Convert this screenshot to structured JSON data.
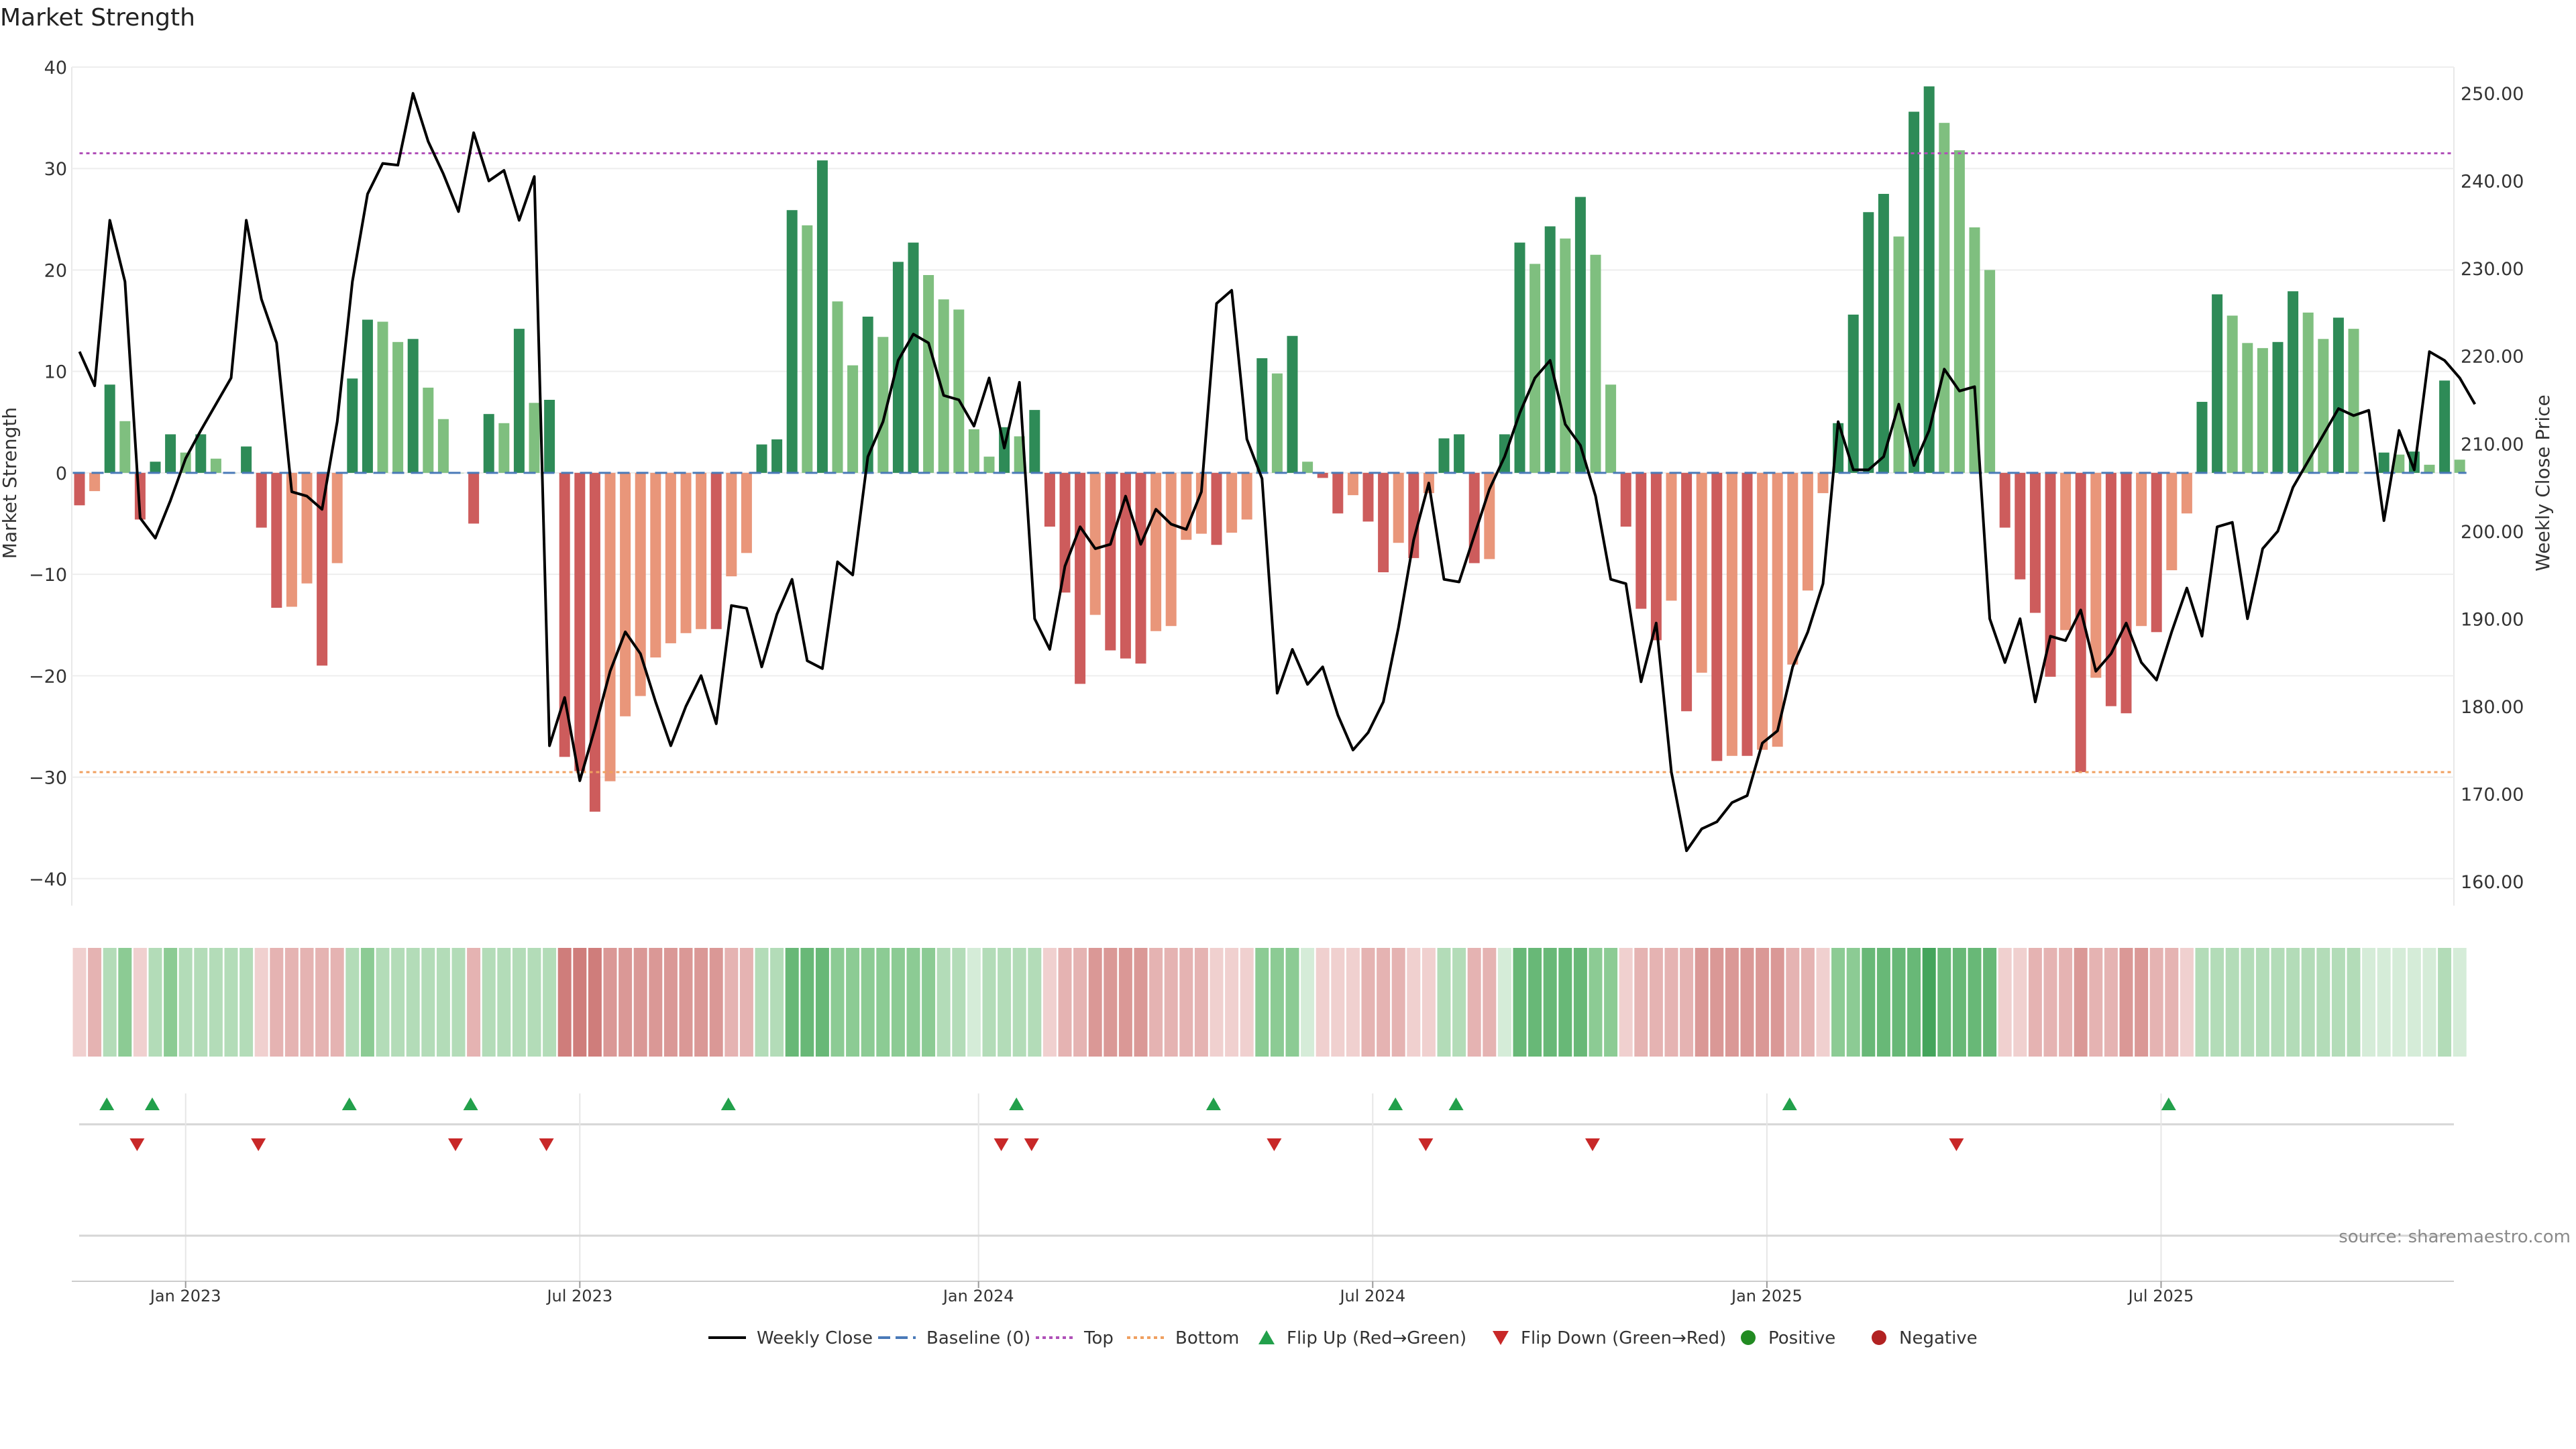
{
  "chart_data": {
    "type": "bar",
    "title": "Market Strength",
    "ylabel": "Market Strength",
    "y2label": "Weekly Close Price",
    "ylim": [
      -42,
      40
    ],
    "y2lim": [
      158,
      253
    ],
    "yticks": [
      40,
      30,
      20,
      10,
      0,
      -10,
      -20,
      -30,
      -40
    ],
    "y2ticks": [
      250,
      240,
      230,
      220,
      210,
      200,
      190,
      180,
      170,
      160
    ],
    "y2tick_labels": [
      "250.00",
      "240.00",
      "230.00",
      "220.00",
      "210.00",
      "200.00",
      "190.00",
      "180.00",
      "170.00",
      "160.00"
    ],
    "top_line": 31.5,
    "bottom_line": -29.5,
    "baseline": 0,
    "x_tick_labels": [
      "Jan 2023",
      "Jul 2023",
      "Jan 2024",
      "Jul 2024",
      "Jan 2025",
      "Jul 2025"
    ],
    "x_tick_weeks": [
      7,
      33,
      59.3,
      85.3,
      111.3,
      137.3
    ],
    "strength": [
      -3.2,
      -1.8,
      8.7,
      5.1,
      -4.6,
      1.1,
      3.8,
      2.0,
      3.8,
      1.4,
      0,
      2.6,
      -5.4,
      -13.3,
      -13.2,
      -10.9,
      -19.0,
      -8.9,
      9.3,
      15.1,
      14.9,
      12.9,
      13.2,
      8.4,
      5.3,
      0,
      -5.0,
      5.8,
      4.9,
      14.2,
      6.9,
      7.2,
      -28.0,
      -29.4,
      -33.4,
      -30.4,
      -24.0,
      -22.0,
      -18.2,
      -16.8,
      -15.8,
      -15.4,
      -15.4,
      -10.2,
      -7.9,
      2.8,
      3.3,
      25.9,
      24.4,
      30.8,
      16.9,
      10.6,
      15.4,
      13.4,
      20.8,
      22.7,
      19.5,
      17.1,
      16.1,
      4.3,
      1.6,
      4.5,
      3.6,
      6.2,
      -5.3,
      -11.8,
      -20.8,
      -14.0,
      -17.5,
      -18.3,
      -18.8,
      -15.6,
      -15.1,
      -6.6,
      -6.0,
      -7.1,
      -5.9,
      -4.6,
      11.3,
      9.8,
      13.5,
      1.1,
      -0.5,
      -4.0,
      -2.2,
      -4.8,
      -9.8,
      -6.9,
      -8.4,
      -2.0,
      3.4,
      3.8,
      -8.9,
      -8.5,
      3.8,
      22.7,
      20.6,
      24.3,
      23.1,
      27.2,
      21.5,
      8.7,
      -5.3,
      -13.4,
      -16.5,
      -12.6,
      -23.5,
      -19.7,
      -28.4,
      -27.9,
      -27.9,
      -27.3,
      -27.0,
      -18.9,
      -11.6,
      -2.0,
      4.9,
      15.6,
      25.7,
      27.5,
      23.3,
      35.6,
      38.1,
      34.5,
      31.8,
      24.2,
      20.0,
      -5.4,
      -10.5,
      -13.8,
      -20.1,
      -15.5,
      -29.5,
      -20.2,
      -23.0,
      -23.7,
      -15.1,
      -15.7,
      -9.6,
      -4.0,
      7.0,
      17.6,
      15.5,
      12.8,
      12.3,
      12.9,
      17.9,
      15.8,
      13.2,
      15.3,
      14.2,
      0,
      2.0,
      1.8,
      2.1,
      0.8,
      9.1,
      1.3
    ],
    "close": [
      220.5,
      216.6,
      235.5,
      228.5,
      201.5,
      199.2,
      203.5,
      208.3,
      211.5,
      214.5,
      217.5,
      235.5,
      226.5,
      221.5,
      204.5,
      204,
      202.5,
      212.5,
      228.5,
      238.5,
      242,
      241.8,
      250,
      244.5,
      240.8,
      236.5,
      245.5,
      240,
      241.2,
      235.5,
      240.5,
      175.5,
      181,
      171.5,
      177.5,
      184,
      188.5,
      186,
      180.5,
      175.5,
      180,
      183.5,
      178,
      191.5,
      191.2,
      184.5,
      190.5,
      194.5,
      185.2,
      184.3,
      196.5,
      195,
      208.5,
      212.5,
      219.5,
      222.5,
      221.5,
      215.5,
      215,
      212,
      217.5,
      209.5,
      217,
      190,
      186.5,
      196,
      200.5,
      198,
      198.5,
      204,
      198.5,
      202.5,
      200.8,
      200.2,
      204.5,
      226,
      227.5,
      210.5,
      206,
      181.5,
      186.5,
      182.5,
      184.5,
      179,
      175,
      177,
      180.5,
      189,
      199,
      205.5,
      194.5,
      194.2,
      199.5,
      204.8,
      208.5,
      213.5,
      217.5,
      219.5,
      212.2,
      209.8,
      204,
      194.5,
      194,
      182.8,
      189.5,
      172.5,
      163.5,
      166,
      166.8,
      169,
      169.8,
      175.8,
      177.2,
      184.5,
      188.5,
      194,
      212.5,
      207,
      207,
      208.5,
      214.5,
      207.5,
      211.5,
      218.5,
      216,
      216.5,
      190,
      185,
      190,
      180.5,
      188,
      187.5,
      191,
      184,
      186,
      189.5,
      185,
      183,
      188.5,
      193.5,
      188,
      200.5,
      201,
      190,
      198,
      200,
      205,
      208,
      211,
      214,
      213.2,
      213.8,
      201.2,
      211.5,
      207,
      220.5,
      219.5,
      217.5,
      214.5
    ],
    "heat_levels": [
      0,
      1,
      1,
      2,
      0,
      1,
      2,
      1,
      1,
      1,
      1,
      1,
      0,
      1,
      1,
      1,
      1,
      1,
      1,
      2,
      1,
      1,
      1,
      1,
      1,
      1,
      1,
      1,
      1,
      1,
      1,
      1,
      3,
      3,
      3,
      2,
      2,
      2,
      2,
      2,
      2,
      2,
      2,
      1,
      1,
      1,
      1,
      3,
      3,
      3,
      2,
      2,
      2,
      2,
      2,
      2,
      2,
      1,
      1,
      0,
      1,
      1,
      1,
      1,
      0,
      1,
      1,
      2,
      2,
      2,
      2,
      1,
      1,
      1,
      1,
      0,
      0,
      0,
      2,
      2,
      2,
      0,
      0,
      0,
      0,
      1,
      1,
      1,
      0,
      0,
      1,
      1,
      1,
      1,
      0,
      3,
      3,
      3,
      3,
      3,
      2,
      2,
      0,
      1,
      1,
      1,
      1,
      2,
      2,
      2,
      2,
      2,
      2,
      1,
      1,
      0,
      2,
      2,
      3,
      3,
      3,
      3,
      4,
      3,
      3,
      3,
      3,
      0,
      0,
      1,
      1,
      1,
      2,
      1,
      1,
      2,
      2,
      1,
      1,
      0,
      1,
      1,
      1,
      1,
      1,
      1,
      1,
      1,
      1,
      1,
      1,
      0,
      0,
      0,
      0,
      0,
      1,
      0
    ],
    "flip_up_weeks": [
      1.8,
      4.8,
      17.8,
      25.8,
      42.8,
      61.8,
      74.8,
      86.8,
      90.8,
      112.8,
      137.8
    ],
    "flip_down_weeks": [
      3.8,
      11.8,
      24.8,
      30.8,
      60.8,
      62.8,
      78.8,
      88.8,
      99.8,
      123.8
    ],
    "legend": [
      "Weekly Close",
      "Baseline (0)",
      "Top",
      "Bottom",
      "Flip Up (Red→Green)",
      "Flip Down (Green→Red)",
      "Positive",
      "Negative"
    ],
    "source": "source: sharemaestro.com",
    "colors": {
      "pos_dark": "#2e8b57",
      "pos_light": "#7fbf7f",
      "neg_dark": "#cd5c5c",
      "neg_light": "#e9967a",
      "close_line": "#000000",
      "baseline": "#4a7ab8",
      "top_line": "#b050b8",
      "bottom_line": "#f0a060",
      "flip_up": "#22a04b",
      "flip_down": "#c82828",
      "positive_dot": "#228b22",
      "negative_dot": "#b22222"
    }
  }
}
